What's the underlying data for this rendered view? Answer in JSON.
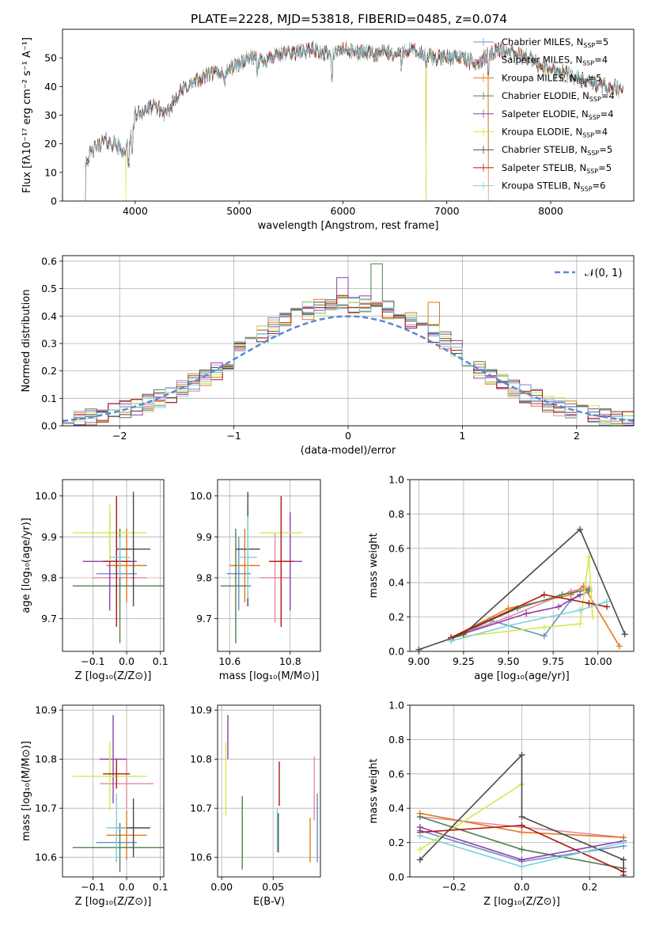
{
  "title": "PLATE=2228, MJD=53818, FIBERID=0485, z=0.074",
  "colors": {
    "chabrier_miles": "#6c8ebf",
    "salpeter_miles": "#e58aa8",
    "kroupa_miles": "#e07a1f",
    "chabrier_elodie": "#4f7f4f",
    "salpeter_elodie": "#8e3fae",
    "kroupa_elodie": "#d6e84a",
    "chabrier_stelib": "#4a4a4a",
    "salpeter_stelib": "#b01818",
    "kroupa_stelib": "#7fd0de",
    "gaussian": "#5b86d6",
    "grid": "#b0b0b0"
  },
  "chart_data": [
    {
      "id": "spectrum",
      "type": "line",
      "xlabel": "wavelength [Angstrom, rest frame]",
      "ylabel": "Flux [fλ10⁻¹⁷ erg cm⁻² s⁻¹ A⁻¹]",
      "xlim": [
        3300,
        8800
      ],
      "ylim": [
        0,
        60
      ],
      "xticks": [
        "4000",
        "5000",
        "6000",
        "7000",
        "8000"
      ],
      "yticks": [
        "0",
        "10",
        "20",
        "30",
        "40",
        "50"
      ],
      "grid": false,
      "legend_position": "top-right",
      "legend": [
        {
          "label": "Chabrier MILES, N",
          "sub": "SSP",
          "suffix": "=5"
        },
        {
          "label": "Salpeter MILES, N",
          "sub": "SSP",
          "suffix": "=4"
        },
        {
          "label": "Kroupa MILES, N",
          "sub": "SSP",
          "suffix": "=5"
        },
        {
          "label": "Chabrier ELODIE, N",
          "sub": "SSP",
          "suffix": "=4"
        },
        {
          "label": "Salpeter ELODIE, N",
          "sub": "SSP",
          "suffix": "=4"
        },
        {
          "label": "Kroupa ELODIE, N",
          "sub": "SSP",
          "suffix": "=4"
        },
        {
          "label": "Chabrier STELIB, N",
          "sub": "SSP",
          "suffix": "=5"
        },
        {
          "label": "Salpeter STELIB, N",
          "sub": "SSP",
          "suffix": "=5"
        },
        {
          "label": "Kroupa STELIB, N",
          "sub": "SSP",
          "suffix": "=6"
        }
      ],
      "continuum": [
        [
          3520,
          14
        ],
        [
          3600,
          18
        ],
        [
          3700,
          21
        ],
        [
          3800,
          20
        ],
        [
          3900,
          17
        ],
        [
          3950,
          22
        ],
        [
          4000,
          30
        ],
        [
          4100,
          32
        ],
        [
          4200,
          33
        ],
        [
          4300,
          30
        ],
        [
          4400,
          37
        ],
        [
          4500,
          40
        ],
        [
          4600,
          42
        ],
        [
          4700,
          44
        ],
        [
          4800,
          45
        ],
        [
          4900,
          46
        ],
        [
          5000,
          48
        ],
        [
          5100,
          50
        ],
        [
          5200,
          49
        ],
        [
          5300,
          50
        ],
        [
          5400,
          51
        ],
        [
          5500,
          52
        ],
        [
          5600,
          52
        ],
        [
          5700,
          53
        ],
        [
          5800,
          52
        ],
        [
          5900,
          51
        ],
        [
          6000,
          53
        ],
        [
          6100,
          52
        ],
        [
          6200,
          52
        ],
        [
          6300,
          51
        ],
        [
          6400,
          52
        ],
        [
          6500,
          51
        ],
        [
          6600,
          53
        ],
        [
          6700,
          52
        ],
        [
          6800,
          51
        ],
        [
          6900,
          50
        ],
        [
          7000,
          50
        ],
        [
          7100,
          51
        ],
        [
          7200,
          49
        ],
        [
          7300,
          48
        ],
        [
          7400,
          51
        ],
        [
          7500,
          53
        ],
        [
          7600,
          52
        ],
        [
          7700,
          51
        ],
        [
          7800,
          50
        ],
        [
          7900,
          47
        ],
        [
          8000,
          46
        ],
        [
          8100,
          45
        ],
        [
          8200,
          44
        ],
        [
          8300,
          42
        ],
        [
          8400,
          41
        ],
        [
          8500,
          40
        ],
        [
          8600,
          40
        ],
        [
          8700,
          38
        ]
      ],
      "absorption_lines": [
        [
          3934,
          8
        ],
        [
          3969,
          9
        ],
        [
          4861,
          5
        ],
        [
          5175,
          4
        ],
        [
          5893,
          9
        ],
        [
          6563,
          6
        ],
        [
          6800,
          5
        ],
        [
          7400,
          4
        ]
      ],
      "dropouts": [
        {
          "series": "kroupa_elodie",
          "x": 3910
        },
        {
          "series": "kroupa_elodie",
          "x": 6800
        },
        {
          "series": "kroupa_miles",
          "x": 6800
        },
        {
          "series": "kroupa_miles",
          "x": 7400
        },
        {
          "series": "chabrier_stelib",
          "x": 3520
        }
      ]
    },
    {
      "id": "residuals",
      "type": "histogram",
      "xlabel": "(data-model)/error",
      "ylabel": "Normed distribution",
      "xlim": [
        -2.5,
        2.5
      ],
      "ylim": [
        0,
        0.62
      ],
      "xticks": [
        "−2",
        "−1",
        "0",
        "1",
        "2"
      ],
      "yticks": [
        "0.0",
        "0.1",
        "0.2",
        "0.3",
        "0.4",
        "0.5",
        "0.6"
      ],
      "grid": true,
      "legend_position": "top-right",
      "legend_label": "𝒩(0, 1)",
      "bin_width": 0.1,
      "bin_start": -2.5,
      "gaussian": {
        "mean": 0,
        "sigma": 1
      },
      "peak_overrides": [
        {
          "series": "chabrier_elodie",
          "x": 0.25,
          "y": 0.59
        },
        {
          "series": "salpeter_elodie",
          "x": -0.05,
          "y": 0.54
        },
        {
          "series": "kroupa_miles",
          "x": 0.75,
          "y": 0.45
        }
      ]
    },
    {
      "id": "age_vs_Z",
      "type": "errorbar",
      "xlabel": "Z [log₁₀(Z/Z⊙)]",
      "ylabel": "age  [log₁₀(age/yr)]",
      "xlim": [
        -0.19,
        0.11
      ],
      "ylim": [
        9.62,
        10.04
      ],
      "xticks": [
        "−0.1",
        "0.0",
        "0.1"
      ],
      "yticks": [
        "9.7",
        "9.8",
        "9.9",
        "10.0"
      ],
      "grid": true,
      "points": [
        {
          "series": "chabrier_miles",
          "x": -0.03,
          "xerr": 0.06,
          "y": 9.81,
          "yerr": 0.09
        },
        {
          "series": "salpeter_miles",
          "x": -0.02,
          "xerr": 0.08,
          "y": 9.8,
          "yerr": 0.06
        },
        {
          "series": "kroupa_miles",
          "x": 0.0,
          "xerr": 0.06,
          "y": 9.83,
          "yerr": 0.09
        },
        {
          "series": "chabrier_elodie",
          "x": -0.02,
          "xerr": 0.14,
          "y": 9.78,
          "yerr": 0.14
        },
        {
          "series": "salpeter_elodie",
          "x": -0.05,
          "xerr": 0.08,
          "y": 9.84,
          "yerr": 0.12
        },
        {
          "series": "kroupa_elodie",
          "x": -0.05,
          "xerr": 0.11,
          "y": 9.91,
          "yerr": 0.07
        },
        {
          "series": "chabrier_stelib",
          "x": 0.02,
          "xerr": 0.05,
          "y": 9.87,
          "yerr": 0.14
        },
        {
          "series": "salpeter_stelib",
          "x": -0.03,
          "xerr": 0.04,
          "y": 9.84,
          "yerr": 0.16
        },
        {
          "series": "kroupa_stelib",
          "x": -0.02,
          "xerr": 0.03,
          "y": 9.85,
          "yerr": 0.05
        }
      ]
    },
    {
      "id": "age_vs_mass",
      "type": "errorbar",
      "xlabel": "mass [log₁₀(M/M⊙)]",
      "ylabel": "",
      "xlim": [
        10.56,
        10.9
      ],
      "ylim": [
        9.62,
        10.04
      ],
      "xticks": [
        "10.6",
        "10.8"
      ],
      "yticks": [
        "9.7",
        "9.8",
        "9.9",
        "10.0"
      ],
      "grid": true,
      "points": [
        {
          "series": "chabrier_miles",
          "x": 10.63,
          "xerr": 0.04,
          "y": 9.81,
          "yerr": 0.09
        },
        {
          "series": "salpeter_miles",
          "x": 10.75,
          "xerr": 0.05,
          "y": 9.8,
          "yerr": 0.11
        },
        {
          "series": "kroupa_miles",
          "x": 10.65,
          "xerr": 0.05,
          "y": 9.83,
          "yerr": 0.09
        },
        {
          "series": "chabrier_elodie",
          "x": 10.62,
          "xerr": 0.05,
          "y": 9.78,
          "yerr": 0.14
        },
        {
          "series": "salpeter_elodie",
          "x": 10.8,
          "xerr": 0.04,
          "y": 9.84,
          "yerr": 0.12
        },
        {
          "series": "kroupa_elodie",
          "x": 10.77,
          "xerr": 0.07,
          "y": 9.91,
          "yerr": 0.07
        },
        {
          "series": "chabrier_stelib",
          "x": 10.66,
          "xerr": 0.04,
          "y": 9.87,
          "yerr": 0.14
        },
        {
          "series": "salpeter_stelib",
          "x": 10.77,
          "xerr": 0.04,
          "y": 9.84,
          "yerr": 0.16
        },
        {
          "series": "kroupa_stelib",
          "x": 10.66,
          "xerr": 0.03,
          "y": 9.85,
          "yerr": 0.1
        }
      ]
    },
    {
      "id": "weight_vs_age",
      "type": "line",
      "xlabel": "age  [log₁₀(age/yr)]",
      "ylabel": "mass weight",
      "xlim": [
        8.95,
        10.2
      ],
      "ylim": [
        0,
        1
      ],
      "xticks": [
        "9.00",
        "9.25",
        "9.50",
        "9.75",
        "10.00"
      ],
      "yticks": [
        "0.0",
        "0.2",
        "0.4",
        "0.6",
        "0.8",
        "1.0"
      ],
      "grid": true,
      "series": [
        {
          "series": "chabrier_miles",
          "x": [
            9.18,
            9.4,
            9.7,
            9.85,
            9.95
          ],
          "y": [
            0.07,
            0.18,
            0.09,
            0.3,
            0.35
          ]
        },
        {
          "series": "salpeter_miles",
          "x": [
            9.18,
            9.5,
            9.85,
            9.95
          ],
          "y": [
            0.08,
            0.2,
            0.35,
            0.37
          ]
        },
        {
          "series": "kroupa_miles",
          "x": [
            9.18,
            9.5,
            9.85,
            9.92,
            10.12
          ],
          "y": [
            0.08,
            0.25,
            0.33,
            0.38,
            0.03
          ]
        },
        {
          "series": "chabrier_elodie",
          "x": [
            9.18,
            9.55,
            9.8,
            9.95
          ],
          "y": [
            0.08,
            0.25,
            0.33,
            0.36
          ]
        },
        {
          "series": "salpeter_elodie",
          "x": [
            9.18,
            9.6,
            9.78,
            9.9
          ],
          "y": [
            0.08,
            0.22,
            0.26,
            0.33
          ]
        },
        {
          "series": "kroupa_elodie",
          "x": [
            9.18,
            9.7,
            9.9,
            9.95,
            9.97
          ],
          "y": [
            0.08,
            0.14,
            0.16,
            0.55,
            0.2
          ]
        },
        {
          "series": "chabrier_stelib",
          "x": [
            9.0,
            9.25,
            9.9,
            10.15
          ],
          "y": [
            0.01,
            0.1,
            0.71,
            0.1
          ]
        },
        {
          "series": "salpeter_stelib",
          "x": [
            9.18,
            9.7,
            9.95,
            10.05
          ],
          "y": [
            0.08,
            0.33,
            0.28,
            0.26
          ]
        },
        {
          "series": "kroupa_stelib",
          "x": [
            9.18,
            9.5,
            9.9,
            10.05
          ],
          "y": [
            0.06,
            0.15,
            0.24,
            0.29
          ]
        }
      ]
    },
    {
      "id": "mass_vs_Z",
      "type": "errorbar",
      "xlabel": "Z [log₁₀(Z/Z⊙)]",
      "ylabel": "mass [log₁₀(M/M⊙)]",
      "xlim": [
        -0.19,
        0.11
      ],
      "ylim": [
        10.56,
        10.91
      ],
      "xticks": [
        "−0.1",
        "0.0",
        "0.1"
      ],
      "yticks": [
        "10.6",
        "10.7",
        "10.8",
        "10.9"
      ],
      "grid": true,
      "points": [
        {
          "series": "chabrier_miles",
          "x": -0.03,
          "xerr": 0.06,
          "y": 10.63,
          "yerr": 0.04
        },
        {
          "series": "salpeter_miles",
          "x": 0.0,
          "xerr": 0.08,
          "y": 10.75,
          "yerr": 0.05
        },
        {
          "series": "kroupa_miles",
          "x": 0.0,
          "xerr": 0.06,
          "y": 10.645,
          "yerr": 0.05
        },
        {
          "series": "chabrier_elodie",
          "x": -0.02,
          "xerr": 0.14,
          "y": 10.62,
          "yerr": 0.05
        },
        {
          "series": "salpeter_elodie",
          "x": -0.04,
          "xerr": 0.04,
          "y": 10.8,
          "yerr": 0.09
        },
        {
          "series": "kroupa_elodie",
          "x": -0.05,
          "xerr": 0.11,
          "y": 10.765,
          "yerr": 0.07
        },
        {
          "series": "chabrier_stelib",
          "x": 0.02,
          "xerr": 0.05,
          "y": 10.66,
          "yerr": 0.06
        },
        {
          "series": "salpeter_stelib",
          "x": -0.03,
          "xerr": 0.04,
          "y": 10.77,
          "yerr": 0.03
        },
        {
          "series": "kroupa_stelib",
          "x": -0.03,
          "xerr": 0.03,
          "y": 10.66,
          "yerr": 0.07
        }
      ]
    },
    {
      "id": "mass_vs_ebv",
      "type": "errorbar",
      "xlabel": "E(B-V)",
      "ylabel": "",
      "xlim": [
        -0.004,
        0.096
      ],
      "ylim": [
        10.56,
        10.91
      ],
      "xticks": [
        "0.00",
        "0.05"
      ],
      "yticks": [
        "10.6",
        "10.7",
        "10.8",
        "10.9"
      ],
      "grid": true,
      "points": [
        {
          "series": "chabrier_miles",
          "x": 0.093,
          "xerr": 0,
          "y": 10.66,
          "yerr": 0.07
        },
        {
          "series": "salpeter_miles",
          "x": 0.09,
          "xerr": 0,
          "y": 10.74,
          "yerr": 0.065
        },
        {
          "series": "kroupa_miles",
          "x": 0.086,
          "xerr": 0,
          "y": 10.635,
          "yerr": 0.045
        },
        {
          "series": "chabrier_elodie",
          "x": 0.02,
          "xerr": 0,
          "y": 10.65,
          "yerr": 0.075
        },
        {
          "series": "salpeter_elodie",
          "x": 0.006,
          "xerr": 0,
          "y": 10.845,
          "yerr": 0.045
        },
        {
          "series": "kroupa_elodie",
          "x": 0.004,
          "xerr": 0,
          "y": 10.76,
          "yerr": 0.075
        },
        {
          "series": "chabrier_stelib",
          "x": 0.055,
          "xerr": 0,
          "y": 10.65,
          "yerr": 0.04
        },
        {
          "series": "salpeter_stelib",
          "x": 0.056,
          "xerr": 0,
          "y": 10.75,
          "yerr": 0.045
        },
        {
          "series": "kroupa_stelib",
          "x": 0.054,
          "xerr": 0,
          "y": 10.655,
          "yerr": 0.045
        }
      ]
    },
    {
      "id": "weight_vs_Z",
      "type": "line",
      "xlabel": "Z [log₁₀(Z/Z⊙)]",
      "ylabel": "mass weight",
      "xlim": [
        -0.33,
        0.33
      ],
      "ylim": [
        0,
        1
      ],
      "xticks": [
        "−0.2",
        "0.0",
        "0.2"
      ],
      "yticks": [
        "0.0",
        "0.2",
        "0.4",
        "0.6",
        "0.8",
        "1.0"
      ],
      "grid": true,
      "series": [
        {
          "series": "chabrier_miles",
          "x": [
            -0.3,
            0.0,
            0.3
          ],
          "y": [
            0.27,
            0.09,
            0.18
          ]
        },
        {
          "series": "salpeter_miles",
          "x": [
            -0.3,
            0.0,
            0.3
          ],
          "y": [
            0.35,
            0.29,
            0.23
          ]
        },
        {
          "series": "kroupa_miles",
          "x": [
            -0.3,
            0.0,
            0.3
          ],
          "y": [
            0.37,
            0.26,
            0.23
          ]
        },
        {
          "series": "chabrier_elodie",
          "x": [
            -0.3,
            0.0,
            0.3
          ],
          "y": [
            0.35,
            0.16,
            0.05
          ]
        },
        {
          "series": "salpeter_elodie",
          "x": [
            -0.3,
            0.0,
            0.3
          ],
          "y": [
            0.29,
            0.1,
            0.21
          ]
        },
        {
          "series": "kroupa_elodie",
          "x": [
            -0.3,
            0.0
          ],
          "y": [
            0.16,
            0.54
          ]
        },
        {
          "series": "chabrier_stelib",
          "x": [
            -0.3,
            0.0,
            0.0,
            0.3,
            0.3
          ],
          "y": [
            0.1,
            0.71,
            0.35,
            0.1,
            0.01
          ]
        },
        {
          "series": "salpeter_stelib",
          "x": [
            -0.3,
            0.0,
            0.3
          ],
          "y": [
            0.26,
            0.3,
            0.03
          ]
        },
        {
          "series": "kroupa_stelib",
          "x": [
            -0.3,
            0.0,
            0.3
          ],
          "y": [
            0.24,
            0.06,
            0.2
          ]
        }
      ]
    }
  ]
}
